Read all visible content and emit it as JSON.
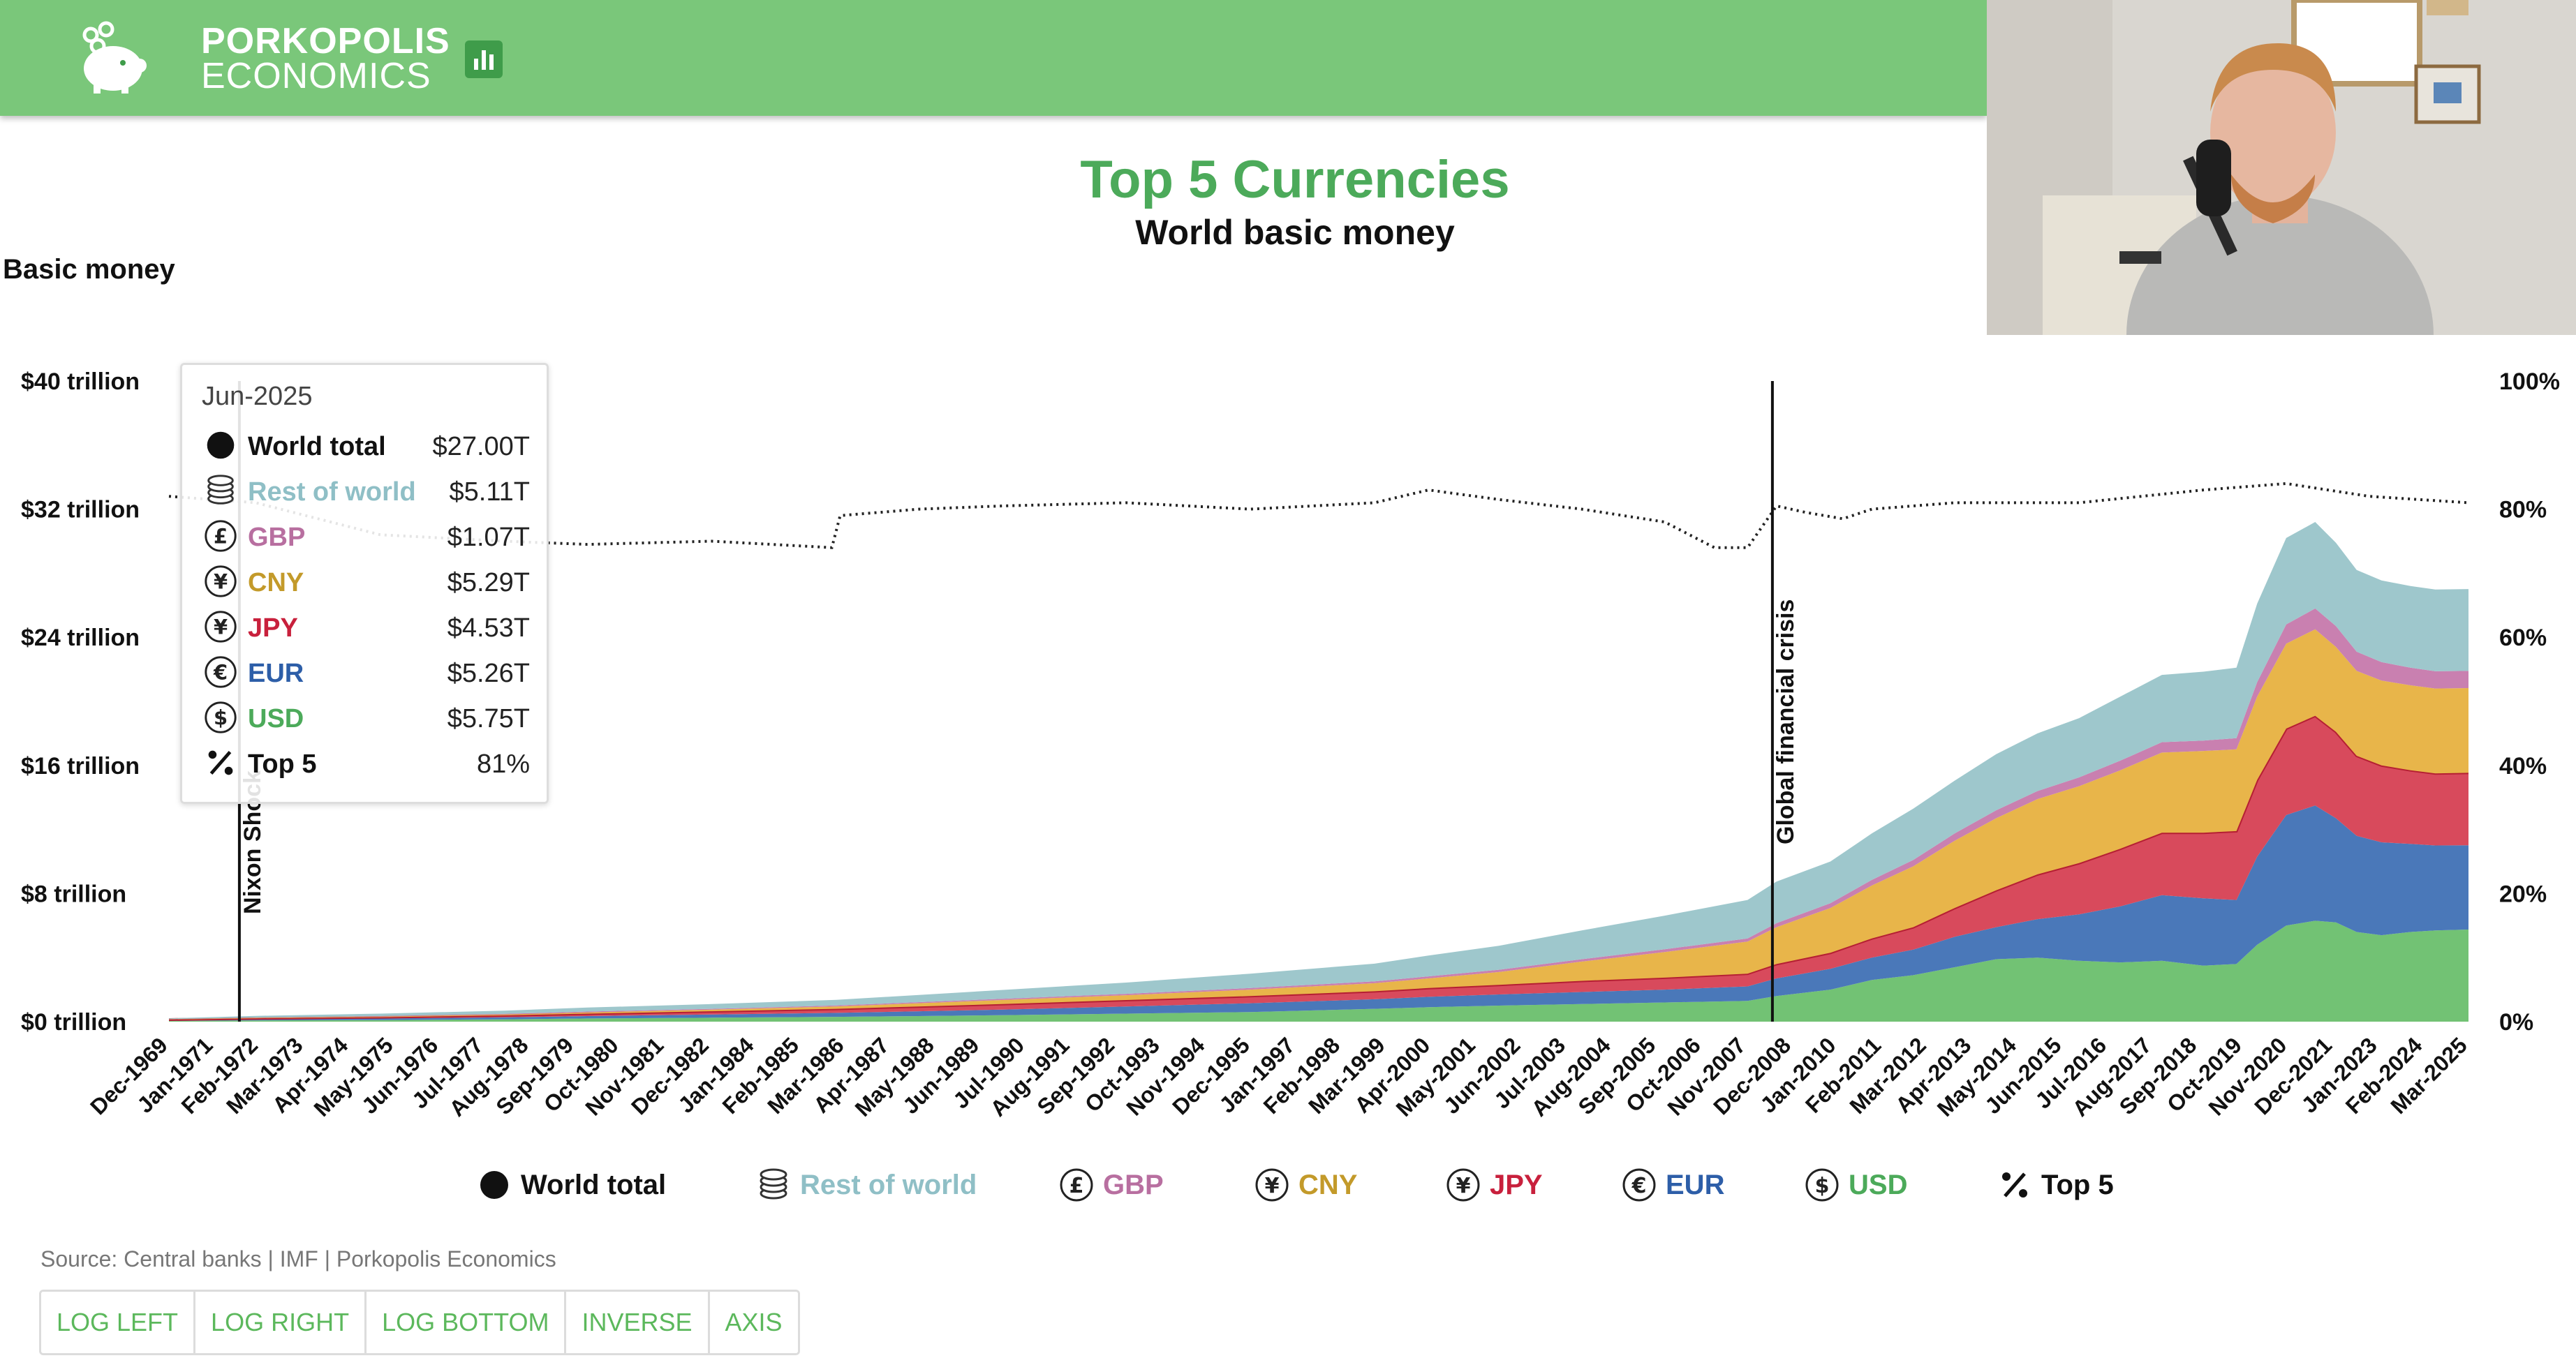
{
  "brand": {
    "line1": "PORKOPOLIS",
    "line2": "ECONOMICS"
  },
  "colors": {
    "header": "#7ac77a",
    "title": "#4caa5a",
    "usd": "#72c274",
    "eur": "#4a78b9",
    "jpy": "#d84a5c",
    "cny": "#e8b54a",
    "gbp": "#c980b0",
    "rest": "#9ec7cc"
  },
  "chart_data": {
    "type": "area",
    "stacked": true,
    "title": "Top 5 Currencies",
    "subtitle": "World basic money",
    "ylabel": "Basic money",
    "ylim": [
      0,
      40
    ],
    "y_ticks": [
      "$0 trillion",
      "$8 trillion",
      "$16 trillion",
      "$24 trillion",
      "$32 trillion",
      "$40 trillion"
    ],
    "y2lim": [
      0,
      100
    ],
    "y2_ticks": [
      "0%",
      "20%",
      "40%",
      "60%",
      "80%",
      "100%"
    ],
    "x_ticks": [
      "Dec-1969",
      "Jan-1971",
      "Feb-1972",
      "Mar-1973",
      "Apr-1974",
      "May-1975",
      "Jun-1976",
      "Jul-1977",
      "Aug-1978",
      "Sep-1979",
      "Oct-1980",
      "Nov-1981",
      "Dec-1982",
      "Jan-1984",
      "Feb-1985",
      "Mar-1986",
      "Apr-1987",
      "May-1988",
      "Jun-1989",
      "Jul-1990",
      "Aug-1991",
      "Sep-1992",
      "Oct-1993",
      "Nov-1994",
      "Dec-1995",
      "Jan-1997",
      "Feb-1998",
      "Mar-1999",
      "Apr-2000",
      "May-2001",
      "Jun-2002",
      "Jul-2003",
      "Aug-2004",
      "Sep-2005",
      "Oct-2006",
      "Nov-2007",
      "Dec-2008",
      "Jan-2010",
      "Feb-2011",
      "Mar-2012",
      "Apr-2013",
      "May-2014",
      "Jun-2015",
      "Jul-2016",
      "Aug-2017",
      "Sep-2018",
      "Oct-2019",
      "Nov-2020",
      "Dec-2021",
      "Jan-2023",
      "Feb-2024",
      "Mar-2025"
    ],
    "x": [
      1969.9,
      1972,
      1975,
      1978,
      1980,
      1983,
      1986,
      1988,
      1990,
      1993,
      1996,
      1999,
      2000.3,
      2002,
      2004,
      2006,
      2008,
      2008.7,
      2010,
      2011,
      2012,
      2013,
      2014,
      2015,
      2016,
      2017,
      2018,
      2019,
      2019.8,
      2020.3,
      2021,
      2021.7,
      2022.2,
      2022.7,
      2023.3,
      2024,
      2024.6,
      2025.4
    ],
    "series": [
      {
        "name": "USD",
        "values": [
          0.05,
          0.08,
          0.1,
          0.15,
          0.2,
          0.25,
          0.3,
          0.35,
          0.4,
          0.5,
          0.6,
          0.8,
          0.9,
          1.0,
          1.1,
          1.2,
          1.3,
          1.6,
          2.0,
          2.6,
          2.9,
          3.4,
          3.9,
          4.0,
          3.8,
          3.7,
          3.8,
          3.5,
          3.6,
          4.8,
          6.0,
          6.3,
          6.2,
          5.6,
          5.4,
          5.6,
          5.7,
          5.75
        ]
      },
      {
        "name": "EUR",
        "values": [
          0.05,
          0.08,
          0.1,
          0.12,
          0.15,
          0.2,
          0.25,
          0.3,
          0.35,
          0.45,
          0.55,
          0.6,
          0.65,
          0.7,
          0.75,
          0.8,
          0.9,
          1.1,
          1.3,
          1.4,
          1.6,
          1.9,
          2.0,
          2.4,
          2.9,
          3.5,
          4.1,
          4.2,
          4.0,
          5.5,
          6.9,
          7.2,
          6.5,
          6.0,
          5.8,
          5.5,
          5.3,
          5.26
        ]
      },
      {
        "name": "JPY",
        "values": [
          0.03,
          0.05,
          0.08,
          0.12,
          0.15,
          0.2,
          0.25,
          0.3,
          0.35,
          0.4,
          0.45,
          0.5,
          0.55,
          0.6,
          0.7,
          0.75,
          0.8,
          0.9,
          1.0,
          1.2,
          1.4,
          1.8,
          2.3,
          2.8,
          3.2,
          3.6,
          3.9,
          4.1,
          4.3,
          4.8,
          5.4,
          5.6,
          5.4,
          5.0,
          4.8,
          4.6,
          4.5,
          4.53
        ]
      },
      {
        "name": "CNY",
        "values": [
          0.02,
          0.03,
          0.04,
          0.06,
          0.08,
          0.1,
          0.15,
          0.2,
          0.25,
          0.3,
          0.4,
          0.5,
          0.6,
          0.8,
          1.2,
          1.6,
          2.0,
          2.3,
          2.8,
          3.3,
          3.8,
          4.2,
          4.5,
          4.7,
          4.8,
          4.9,
          5.0,
          5.1,
          5.1,
          5.2,
          5.3,
          5.4,
          5.3,
          5.3,
          5.3,
          5.3,
          5.3,
          5.29
        ]
      },
      {
        "name": "GBP",
        "values": [
          0.01,
          0.02,
          0.03,
          0.04,
          0.05,
          0.05,
          0.06,
          0.07,
          0.08,
          0.09,
          0.1,
          0.12,
          0.13,
          0.14,
          0.15,
          0.17,
          0.2,
          0.25,
          0.3,
          0.35,
          0.4,
          0.45,
          0.5,
          0.5,
          0.55,
          0.6,
          0.65,
          0.65,
          0.7,
          0.9,
          1.2,
          1.3,
          1.3,
          1.2,
          1.15,
          1.1,
          1.08,
          1.07
        ]
      },
      {
        "name": "Rest of world",
        "values": [
          0.05,
          0.1,
          0.15,
          0.2,
          0.25,
          0.3,
          0.35,
          0.45,
          0.55,
          0.7,
          0.9,
          1.1,
          1.3,
          1.5,
          1.8,
          2.1,
          2.4,
          2.6,
          2.6,
          2.9,
          3.2,
          3.3,
          3.5,
          3.6,
          3.7,
          4.0,
          4.2,
          4.3,
          4.4,
          4.9,
          5.4,
          5.4,
          5.2,
          5.1,
          5.1,
          5.1,
          5.1,
          5.11
        ]
      }
    ],
    "top5_share": {
      "name": "Top 5",
      "x": [
        1969.9,
        1972,
        1975,
        1978,
        1980,
        1983,
        1985.9,
        1986.1,
        1988,
        1990,
        1993,
        1996,
        1999,
        2000.3,
        2002,
        2004,
        2006,
        2007.2,
        2008,
        2008.7,
        2009.4,
        2010.3,
        2011,
        2013,
        2016,
        2019,
        2021,
        2023,
        2025.4
      ],
      "values": [
        82,
        81,
        76,
        75,
        74.5,
        75,
        74,
        79,
        80,
        80.5,
        81,
        80,
        81,
        83,
        81.5,
        80,
        78,
        74,
        74,
        80.5,
        79.5,
        78.5,
        80,
        81,
        81,
        83,
        84,
        82,
        81
      ]
    },
    "events": [
      {
        "x": 1971.6,
        "label": "Nixon Shock"
      },
      {
        "x": 2008.6,
        "label": "Global financial crisis"
      }
    ],
    "tooltip": {
      "date": "Jun-2025",
      "rows": [
        {
          "name": "World total",
          "value": "$27.00T",
          "color": "#111111",
          "icon": "dot-icon"
        },
        {
          "name": "Rest of world",
          "value": "$5.11T",
          "color": "#8fbfc6",
          "icon": "coins-icon"
        },
        {
          "name": "GBP",
          "value": "$1.07T",
          "color": "#b86fa0",
          "icon": "pound-icon"
        },
        {
          "name": "CNY",
          "value": "$5.29T",
          "color": "#c39a2a",
          "icon": "yuan-icon"
        },
        {
          "name": "JPY",
          "value": "$4.53T",
          "color": "#c8203c",
          "icon": "yen-icon"
        },
        {
          "name": "EUR",
          "value": "$5.26T",
          "color": "#2d5ea8",
          "icon": "euro-icon"
        },
        {
          "name": "USD",
          "value": "$5.75T",
          "color": "#4caa5a",
          "icon": "dollar-icon"
        },
        {
          "name": "Top 5",
          "value": "81%",
          "color": "#111111",
          "icon": "percent-icon"
        }
      ]
    },
    "legend": [
      {
        "name": "World total",
        "color": "#111111",
        "icon": "dot-icon"
      },
      {
        "name": "Rest of world",
        "color": "#8fbfc6",
        "icon": "coins-icon"
      },
      {
        "name": "GBP",
        "color": "#b86fa0",
        "icon": "pound-icon"
      },
      {
        "name": "CNY",
        "color": "#c39a2a",
        "icon": "yuan-icon"
      },
      {
        "name": "JPY",
        "color": "#c8203c",
        "icon": "yen-icon"
      },
      {
        "name": "EUR",
        "color": "#2d5ea8",
        "icon": "euro-icon"
      },
      {
        "name": "USD",
        "color": "#4caa5a",
        "icon": "dollar-icon"
      },
      {
        "name": "Top 5",
        "color": "#111111",
        "icon": "percent-icon"
      }
    ],
    "source": "Source: Central banks | IMF | Porkopolis Economics"
  },
  "controls": {
    "buttons": [
      "LOG LEFT",
      "LOG RIGHT",
      "LOG BOTTOM",
      "INVERSE",
      "AXIS"
    ]
  }
}
